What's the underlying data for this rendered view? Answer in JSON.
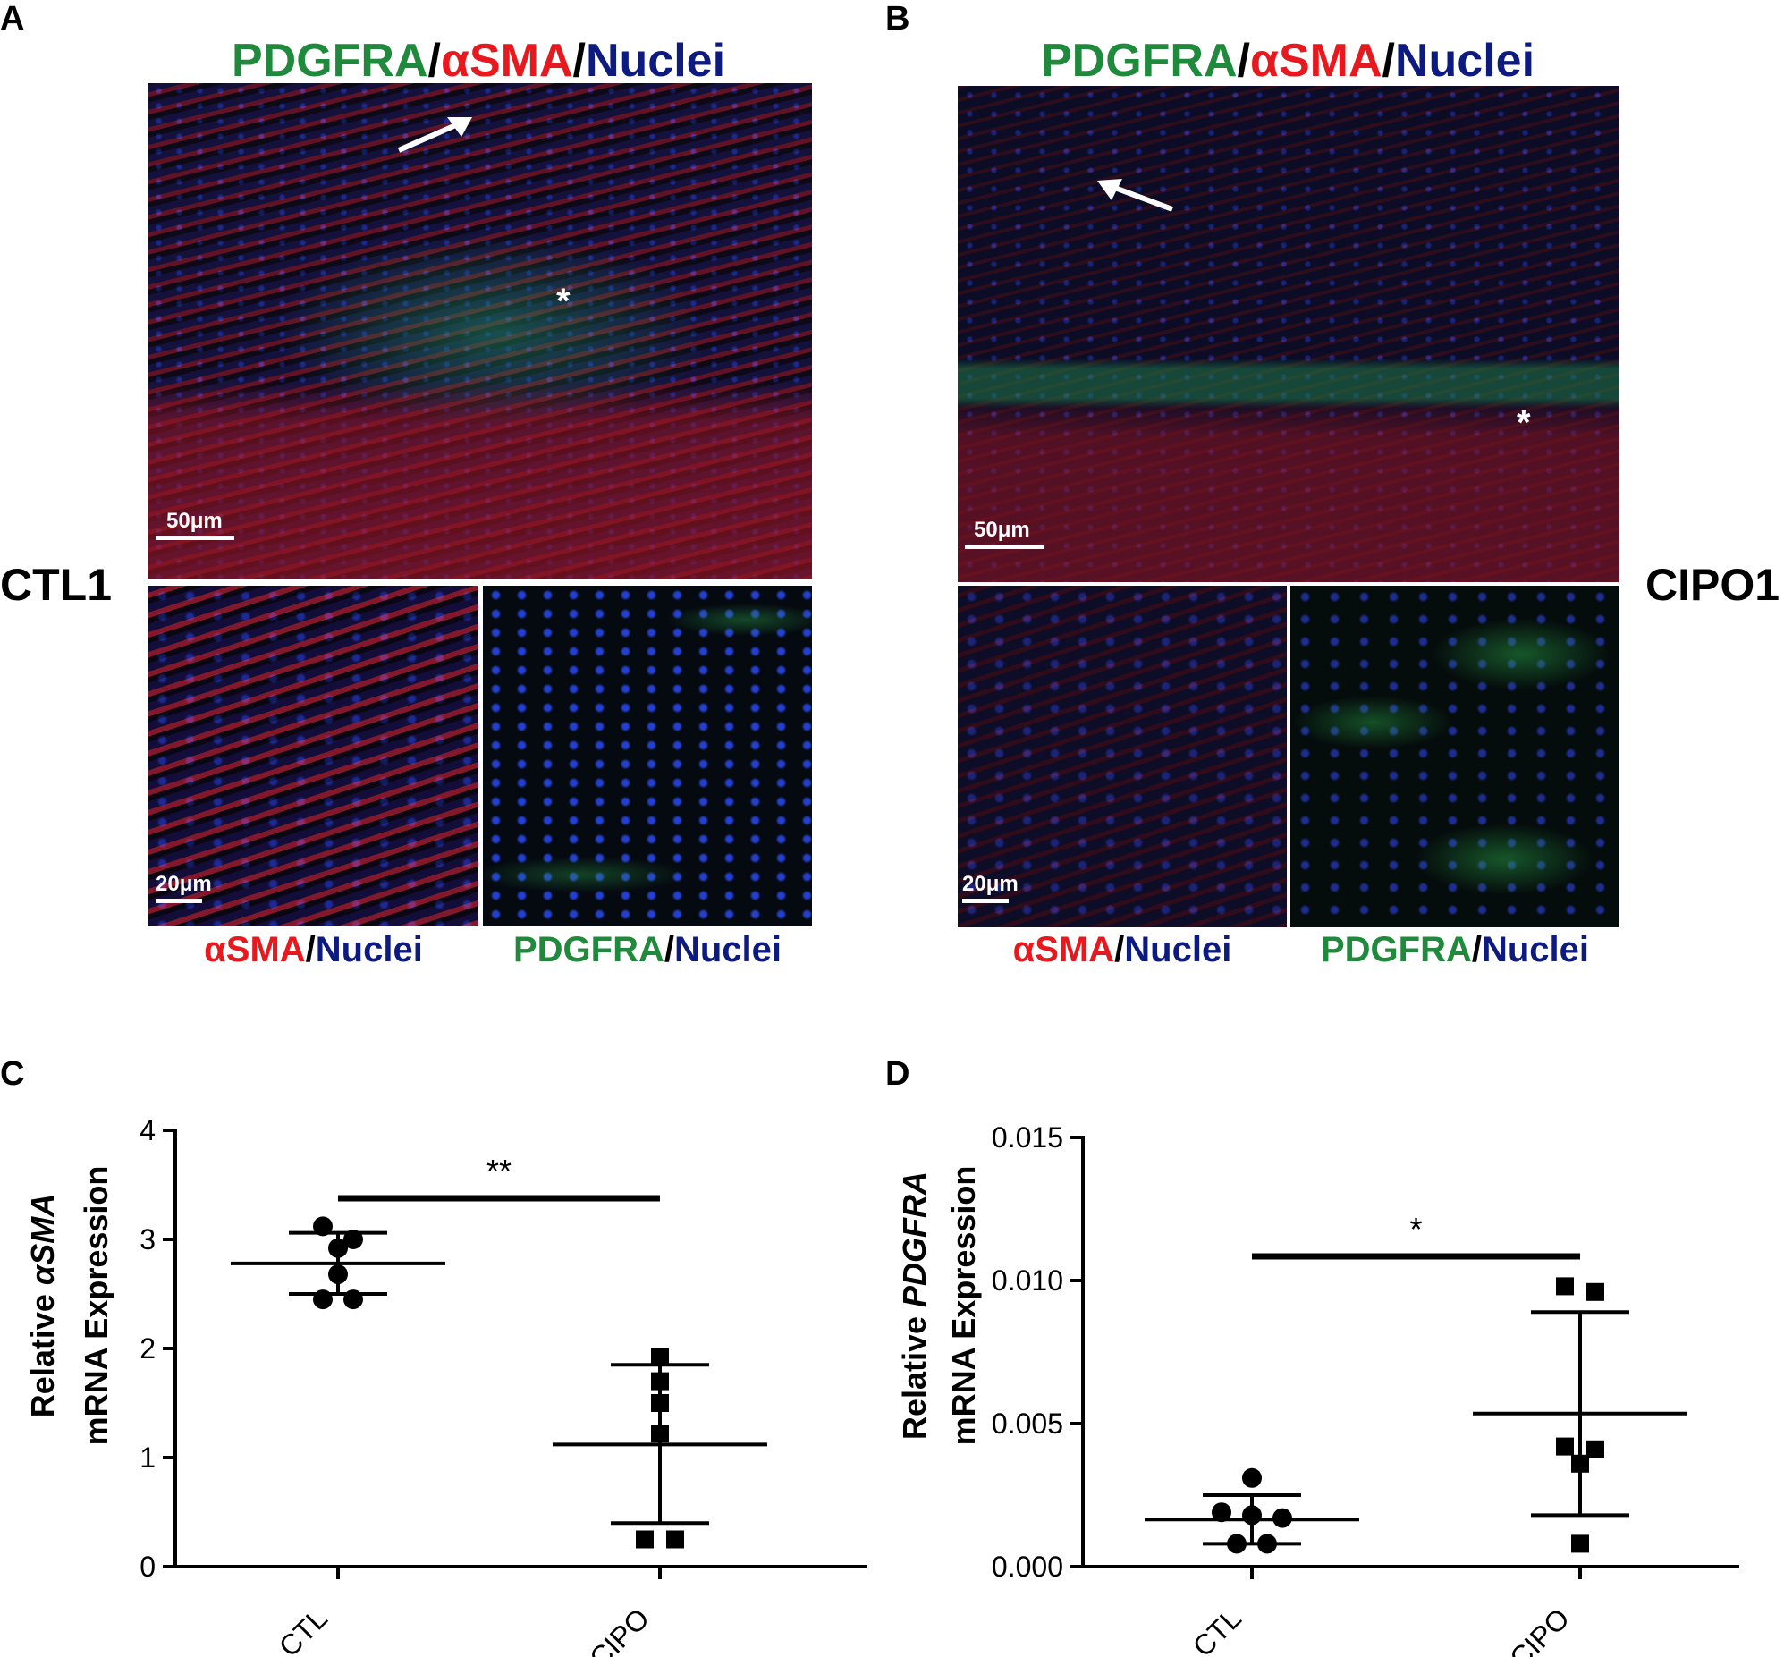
{
  "panels": {
    "A": {
      "letter": "A",
      "title": {
        "p1": "PDGFRA",
        "s1": "/",
        "p2": "αSMA",
        "s2": "/",
        "p3": "Nuclei"
      },
      "side_label": "CTL1",
      "main_scale": "50μm",
      "inset_scale": "20μm",
      "caption_left": {
        "p1": "αSMA",
        "s1": "/",
        "p2": "Nuclei"
      },
      "caption_right": {
        "p1": "PDGFRA",
        "s1": "/",
        "p2": "Nuclei"
      },
      "asterisk": "*"
    },
    "B": {
      "letter": "B",
      "title": {
        "p1": "PDGFRA",
        "s1": "/",
        "p2": "αSMA",
        "s2": "/",
        "p3": "Nuclei"
      },
      "side_label": "CIPO1",
      "main_scale": "50μm",
      "inset_scale": "20μm",
      "caption_left": {
        "p1": "αSMA",
        "s1": "/",
        "p2": "Nuclei"
      },
      "caption_right": {
        "p1": "PDGFRA",
        "s1": "/",
        "p2": "Nuclei"
      },
      "asterisk": "*"
    },
    "C": {
      "letter": "C"
    },
    "D": {
      "letter": "D"
    }
  },
  "colors": {
    "green": "#1f8a3c",
    "red": "#e8191e",
    "blue": "#0d1a80"
  },
  "chart_data": [
    {
      "panel": "C",
      "type": "scatter",
      "ylabel_line1_pre": "Relative ",
      "ylabel_line1_ital": "αSMA",
      "ylabel_line2": "mRNA Expression",
      "categories": [
        "CTL",
        "CIPO"
      ],
      "ylim": [
        0,
        4
      ],
      "yticks": [
        "0",
        "1",
        "2",
        "3",
        "4"
      ],
      "ytick_values": [
        0,
        1,
        2,
        3,
        4
      ],
      "series": [
        {
          "category": "CTL",
          "marker": "circle",
          "values": [
            3.12,
            2.92,
            3.0,
            2.68,
            2.45,
            2.45
          ],
          "mean": 2.78,
          "sd_upper": 3.06,
          "sd_lower": 2.5
        },
        {
          "category": "CIPO",
          "marker": "square",
          "values": [
            1.92,
            1.7,
            1.5,
            1.22,
            0.25,
            0.25
          ],
          "mean": 1.12,
          "sd_upper": 1.85,
          "sd_lower": 0.4
        }
      ],
      "significance": "**"
    },
    {
      "panel": "D",
      "type": "scatter",
      "ylabel_line1_pre": "Relative ",
      "ylabel_line1_ital": "PDGFRA",
      "ylabel_line2": "mRNA Expression",
      "categories": [
        "CTL",
        "CIPO"
      ],
      "ylim": [
        0,
        0.015
      ],
      "yticks": [
        "0.000",
        "0.005",
        "0.010",
        "0.015"
      ],
      "ytick_values": [
        0,
        0.005,
        0.01,
        0.015
      ],
      "series": [
        {
          "category": "CTL",
          "marker": "circle",
          "values": [
            0.0031,
            0.0019,
            0.0018,
            0.0017,
            0.0008,
            0.0008
          ],
          "mean": 0.00165,
          "sd_upper": 0.0025,
          "sd_lower": 0.0008
        },
        {
          "category": "CIPO",
          "marker": "square",
          "values": [
            0.0098,
            0.0096,
            0.0042,
            0.0041,
            0.0036,
            0.0008
          ],
          "mean": 0.00535,
          "sd_upper": 0.0089,
          "sd_lower": 0.0018
        }
      ],
      "significance": "*"
    }
  ]
}
